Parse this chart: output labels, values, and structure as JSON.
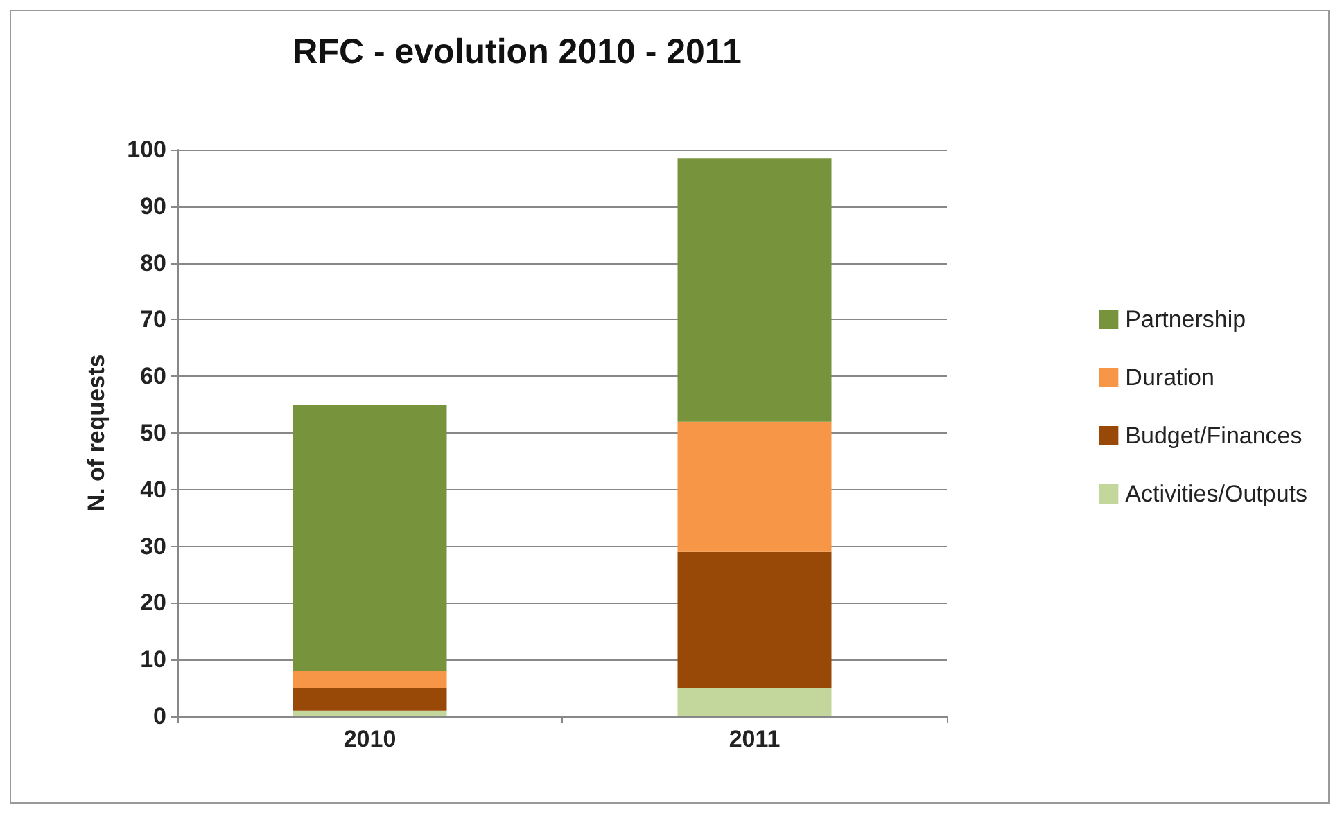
{
  "chart_data": {
    "type": "bar",
    "title": "RFC - evolution 2010 - 2011",
    "ylabel": "N. of requests",
    "categories": [
      "2010",
      "2011"
    ],
    "series": [
      {
        "name": "Activities/Outputs",
        "color": "#c3d69b",
        "values": [
          1,
          5
        ]
      },
      {
        "name": "Budget/Finances",
        "color": "#984807",
        "values": [
          4,
          24
        ]
      },
      {
        "name": "Duration",
        "color": "#f79646",
        "values": [
          3,
          23
        ]
      },
      {
        "name": "Partnership",
        "color": "#77933c",
        "values": [
          47,
          46.5
        ]
      }
    ],
    "stacked": true,
    "ylim": [
      0,
      100
    ],
    "yticks": [
      0,
      10,
      20,
      30,
      40,
      50,
      60,
      70,
      80,
      90,
      100
    ],
    "grid": "y",
    "legend": "right"
  }
}
